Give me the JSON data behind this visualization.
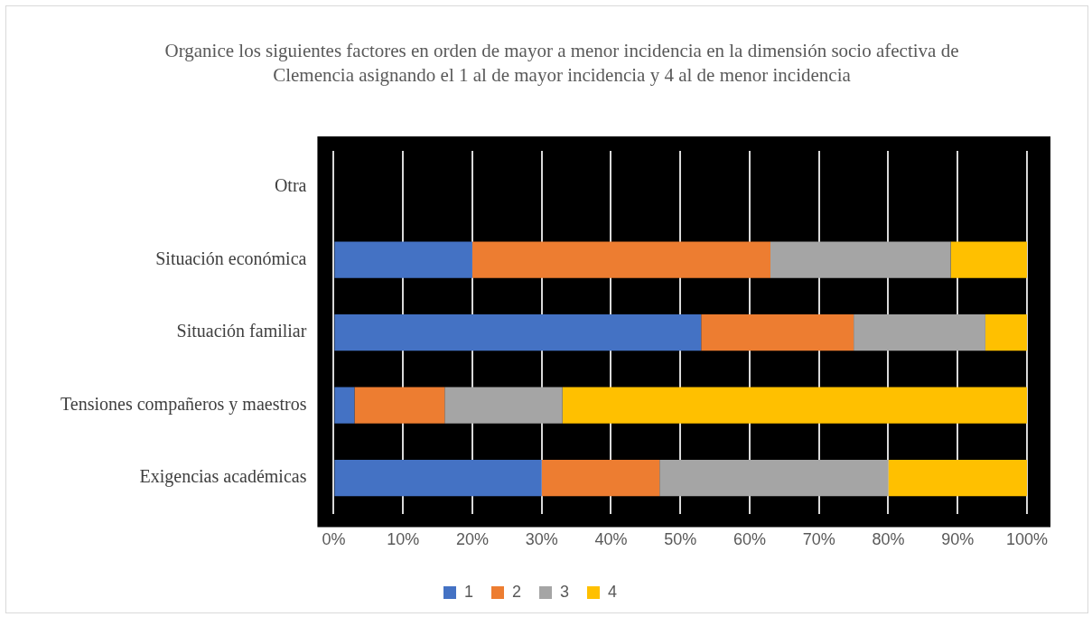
{
  "chart_data": {
    "type": "bar",
    "orientation": "horizontal",
    "stacked": true,
    "title": "Organice los siguientes factores en orden de mayor a menor incidencia en la dimensión socio afectiva de Clemencia asignando el 1 al de mayor incidencia y 4 al de menor incidencia",
    "categories": [
      "Otra",
      "Situación económica",
      "Situación familiar",
      "Tensiones compañeros y maestros",
      "Exigencias académicas"
    ],
    "series": [
      {
        "name": "1",
        "color": "#4472c4",
        "values": [
          0,
          20,
          53,
          3,
          30
        ]
      },
      {
        "name": "2",
        "color": "#ed7d31",
        "values": [
          0,
          43,
          22,
          13,
          17
        ]
      },
      {
        "name": "3",
        "color": "#a5a5a5",
        "values": [
          0,
          26,
          19,
          17,
          33
        ]
      },
      {
        "name": "4",
        "color": "#ffc000",
        "values": [
          0,
          11,
          6,
          67,
          20
        ]
      }
    ],
    "xlim": [
      0,
      100
    ],
    "xticks": [
      {
        "value": 0,
        "label": "0%"
      },
      {
        "value": 10,
        "label": "10%"
      },
      {
        "value": 20,
        "label": "20%"
      },
      {
        "value": 30,
        "label": "30%"
      },
      {
        "value": 40,
        "label": "40%"
      },
      {
        "value": 50,
        "label": "50%"
      },
      {
        "value": 60,
        "label": "60%"
      },
      {
        "value": 70,
        "label": "70%"
      },
      {
        "value": 80,
        "label": "80%"
      },
      {
        "value": 90,
        "label": "90%"
      },
      {
        "value": 100,
        "label": "100%"
      }
    ],
    "grid": "x",
    "legend": "bottom"
  }
}
